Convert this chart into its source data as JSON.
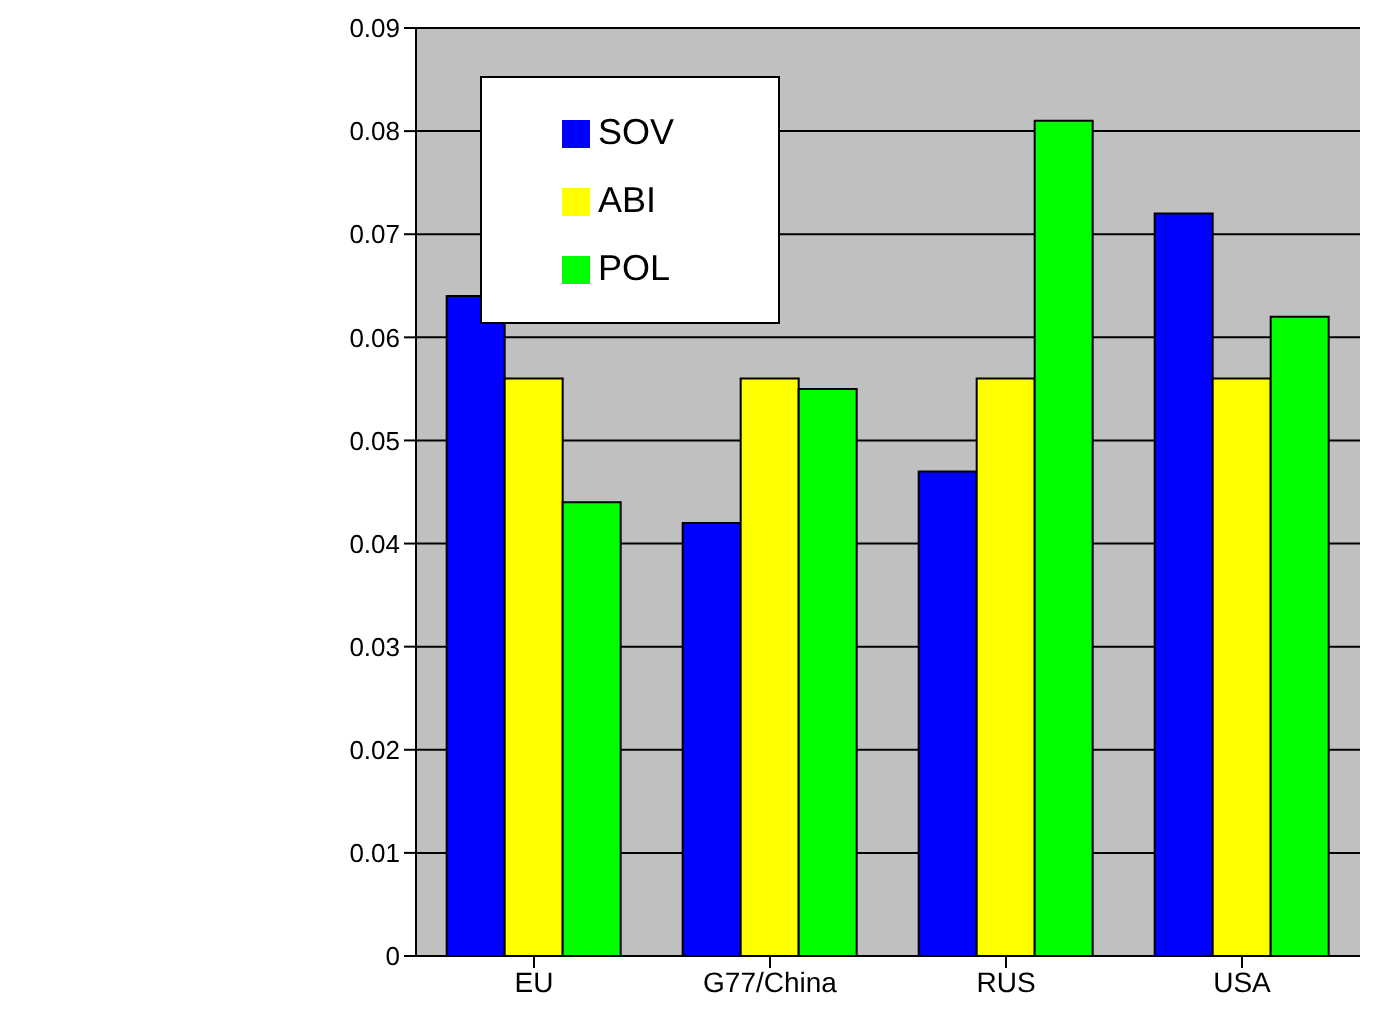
{
  "chart_data": {
    "type": "bar",
    "categories": [
      "EU",
      "G77/China",
      "RUS",
      "USA"
    ],
    "series": [
      {
        "name": "SOV",
        "color": "#0000ff",
        "values": [
          0.064,
          0.042,
          0.047,
          0.072
        ]
      },
      {
        "name": "ABI",
        "color": "#ffff00",
        "values": [
          0.056,
          0.056,
          0.056,
          0.056
        ]
      },
      {
        "name": "POL",
        "color": "#00ff00",
        "values": [
          0.044,
          0.055,
          0.081,
          0.062
        ]
      }
    ],
    "ylim": [
      0,
      0.09
    ],
    "yticks": [
      0,
      0.01,
      0.02,
      0.03,
      0.04,
      0.05,
      0.06,
      0.07,
      0.08,
      0.09
    ],
    "grid": "y",
    "legend": "top"
  }
}
